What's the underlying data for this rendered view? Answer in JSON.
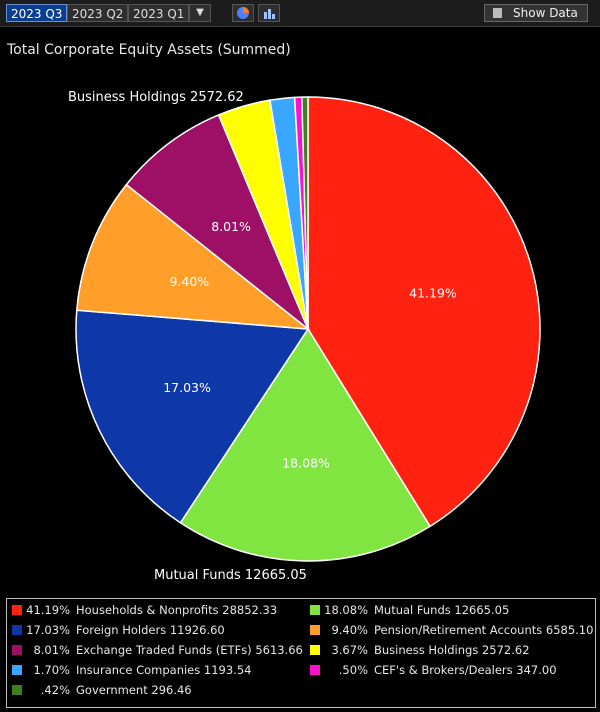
{
  "toolbar": {
    "tabs": [
      "2023 Q3",
      "2023 Q2",
      "2023 Q1"
    ],
    "show_data_label": "Show Data",
    "dropdown_icon": "triangle-down-icon",
    "pie_icon": "pie-chart-icon",
    "bar_icon": "bar-chart-icon",
    "show_data_icon": "table-icon"
  },
  "chart_data": {
    "type": "pie",
    "title": "Total Corporate Equity Assets (Summed)",
    "slices": [
      {
        "name": "Households & Nonprofits",
        "value": 28852.33,
        "pct_label": "41.19%",
        "color": "#ff2211"
      },
      {
        "name": "Mutual Funds",
        "value": 12665.05,
        "pct_label": "18.08%",
        "color": "#80e540"
      },
      {
        "name": "Foreign Holders",
        "value": 11926.6,
        "pct_label": "17.03%",
        "color": "#0e37a7"
      },
      {
        "name": "Pension/Retirement Accounts",
        "value": 6585.1,
        "pct_label": "9.40%",
        "color": "#ff9f2a"
      },
      {
        "name": "Exchange Traded Funds (ETFs)",
        "value": 5613.66,
        "pct_label": "8.01%",
        "color": "#9e1065"
      },
      {
        "name": "Business Holdings",
        "value": 2572.62,
        "pct_label": "3.67%",
        "color": "#ffff00"
      },
      {
        "name": "Insurance Companies",
        "value": 1193.54,
        "pct_label": "1.70%",
        "color": "#39a7ff"
      },
      {
        "name": "CEF's & Brokers/Dealers",
        "value": 347.0,
        "pct_label": ".50%",
        "color": "#ff11cc"
      },
      {
        "name": "Government",
        "value": 296.46,
        "pct_label": ".42%",
        "color": "#3f7f1e"
      }
    ],
    "slice_labels": [
      "41.19%",
      "18.08%",
      "17.03%",
      "9.40%",
      "8.01%"
    ],
    "callouts": [
      "Business Holdings 2572.62",
      "Mutual Funds 12665.05"
    ],
    "legend_value_labels": [
      "28852.33",
      "12665.05",
      "11926.60",
      "6585.10",
      "5613.66",
      "2572.62",
      "1193.54",
      "347.00",
      "296.46"
    ]
  }
}
